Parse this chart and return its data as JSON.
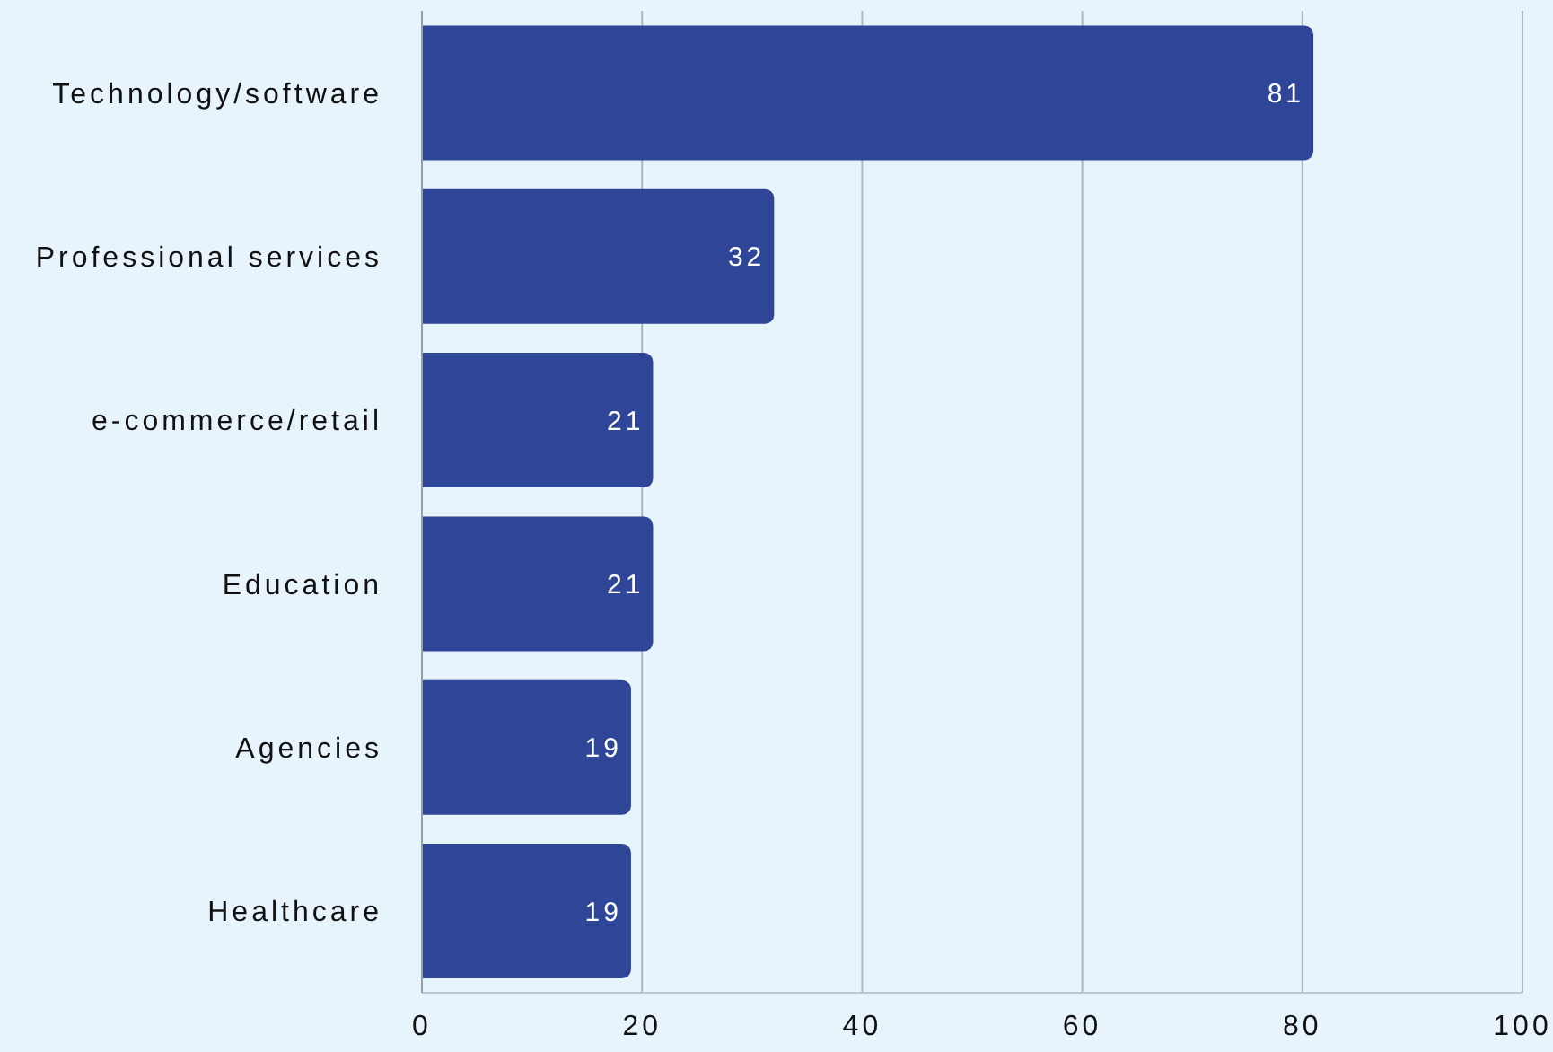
{
  "chart_data": {
    "type": "bar",
    "orientation": "horizontal",
    "categories": [
      "Technology/software",
      "Professional services",
      "e-commerce/retail",
      "Education",
      "Agencies",
      "Healthcare"
    ],
    "values": [
      81,
      32,
      21,
      21,
      19,
      19
    ],
    "color": "#2e4598",
    "xlim": [
      0,
      100
    ],
    "xticks": [
      0,
      20,
      40,
      60,
      80,
      100
    ],
    "grid": "x",
    "data_labels": true
  }
}
